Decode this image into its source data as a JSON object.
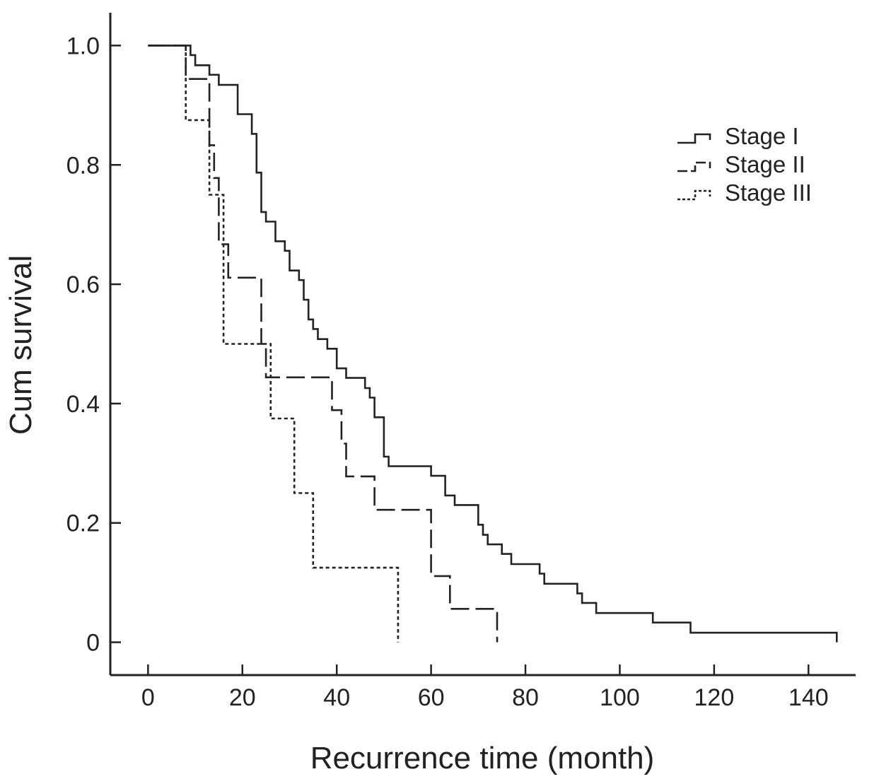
{
  "chart_data": {
    "type": "line",
    "subtype": "kaplan-meier-step",
    "title": "",
    "xlabel": "Recurrence time (month)",
    "ylabel": "Cum survival",
    "xlim": [
      -8,
      150
    ],
    "ylim": [
      -0.055,
      1.055
    ],
    "x_ticks": [
      0,
      20,
      40,
      60,
      80,
      100,
      120,
      140
    ],
    "x_tick_labels": [
      "0",
      "20",
      "40",
      "60",
      "80",
      "100",
      "120",
      "140"
    ],
    "y_ticks": [
      0,
      0.2,
      0.4,
      0.6,
      0.8,
      1.0
    ],
    "y_tick_labels": [
      "0",
      "0.2",
      "0.4",
      "0.6",
      "0.8",
      "1.0"
    ],
    "grid": false,
    "legend_position": "top-right",
    "series": [
      {
        "name": "Stage I",
        "line_style": "solid",
        "color": "#222222",
        "points": [
          [
            0,
            1.0
          ],
          [
            9,
            0.984
          ],
          [
            10,
            0.967
          ],
          [
            13,
            0.951
          ],
          [
            15,
            0.934
          ],
          [
            19,
            0.885
          ],
          [
            22,
            0.852
          ],
          [
            23,
            0.787
          ],
          [
            24,
            0.721
          ],
          [
            25,
            0.705
          ],
          [
            27,
            0.672
          ],
          [
            29,
            0.656
          ],
          [
            30,
            0.623
          ],
          [
            32,
            0.607
          ],
          [
            33,
            0.574
          ],
          [
            34,
            0.541
          ],
          [
            35,
            0.525
          ],
          [
            36,
            0.508
          ],
          [
            38,
            0.492
          ],
          [
            40,
            0.459
          ],
          [
            42,
            0.443
          ],
          [
            46,
            0.426
          ],
          [
            47,
            0.41
          ],
          [
            48,
            0.377
          ],
          [
            50,
            0.311
          ],
          [
            51,
            0.295
          ],
          [
            60,
            0.279
          ],
          [
            63,
            0.246
          ],
          [
            65,
            0.23
          ],
          [
            70,
            0.197
          ],
          [
            71,
            0.18
          ],
          [
            72,
            0.164
          ],
          [
            75,
            0.148
          ],
          [
            77,
            0.131
          ],
          [
            83,
            0.115
          ],
          [
            84,
            0.098
          ],
          [
            91,
            0.082
          ],
          [
            92,
            0.066
          ],
          [
            95,
            0.049
          ],
          [
            107,
            0.033
          ],
          [
            115,
            0.016
          ],
          [
            146,
            0.0
          ]
        ]
      },
      {
        "name": "Stage II",
        "line_style": "dashed",
        "color": "#222222",
        "points": [
          [
            0,
            1.0
          ],
          [
            8,
            0.944
          ],
          [
            13,
            0.833
          ],
          [
            14,
            0.778
          ],
          [
            15,
            0.667
          ],
          [
            17,
            0.611
          ],
          [
            24,
            0.5
          ],
          [
            25,
            0.444
          ],
          [
            39,
            0.389
          ],
          [
            41,
            0.333
          ],
          [
            42,
            0.278
          ],
          [
            48,
            0.222
          ],
          [
            60,
            0.111
          ],
          [
            64,
            0.056
          ],
          [
            74,
            0.0
          ]
        ]
      },
      {
        "name": "Stage III",
        "line_style": "dotted",
        "color": "#222222",
        "points": [
          [
            0,
            1.0
          ],
          [
            8,
            0.875
          ],
          [
            13,
            0.75
          ],
          [
            16,
            0.5
          ],
          [
            26,
            0.375
          ],
          [
            31,
            0.25
          ],
          [
            35,
            0.125
          ],
          [
            53,
            0.0
          ]
        ]
      }
    ]
  }
}
